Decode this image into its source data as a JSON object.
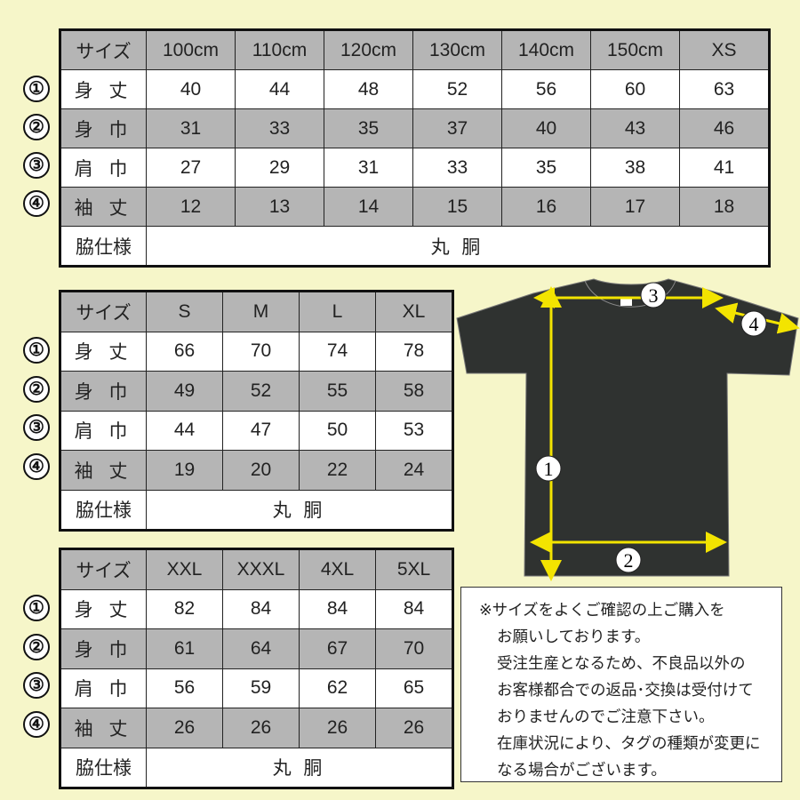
{
  "row_markers": [
    "①",
    "②",
    "③",
    "④"
  ],
  "tables": [
    {
      "header": [
        "サイズ",
        "100cm",
        "110cm",
        "120cm",
        "130cm",
        "140cm",
        "150cm",
        "XS"
      ],
      "rows": [
        {
          "label": "身 丈",
          "values": [
            "40",
            "44",
            "48",
            "52",
            "56",
            "60",
            "63"
          ]
        },
        {
          "label": "身 巾",
          "values": [
            "31",
            "33",
            "35",
            "37",
            "40",
            "43",
            "46"
          ]
        },
        {
          "label": "肩 巾",
          "values": [
            "27",
            "29",
            "31",
            "33",
            "35",
            "38",
            "41"
          ]
        },
        {
          "label": "袖 丈",
          "values": [
            "12",
            "13",
            "14",
            "15",
            "16",
            "17",
            "18"
          ]
        }
      ],
      "side_label": "脇仕様",
      "side_value": "丸 胴"
    },
    {
      "header": [
        "サイズ",
        "S",
        "M",
        "L",
        "XL"
      ],
      "rows": [
        {
          "label": "身 丈",
          "values": [
            "66",
            "70",
            "74",
            "78"
          ]
        },
        {
          "label": "身 巾",
          "values": [
            "49",
            "52",
            "55",
            "58"
          ]
        },
        {
          "label": "肩 巾",
          "values": [
            "44",
            "47",
            "50",
            "53"
          ]
        },
        {
          "label": "袖 丈",
          "values": [
            "19",
            "20",
            "22",
            "24"
          ]
        }
      ],
      "side_label": "脇仕様",
      "side_value": "丸 胴"
    },
    {
      "header": [
        "サイズ",
        "XXL",
        "XXXL",
        "4XL",
        "5XL"
      ],
      "rows": [
        {
          "label": "身 丈",
          "values": [
            "82",
            "84",
            "84",
            "84"
          ]
        },
        {
          "label": "身 巾",
          "values": [
            "61",
            "64",
            "67",
            "70"
          ]
        },
        {
          "label": "肩 巾",
          "values": [
            "56",
            "59",
            "62",
            "65"
          ]
        },
        {
          "label": "袖 丈",
          "values": [
            "26",
            "26",
            "26",
            "26"
          ]
        }
      ],
      "side_label": "脇仕様",
      "side_value": "丸 胴"
    }
  ],
  "diagram": {
    "markers": [
      "1",
      "2",
      "3",
      "4"
    ],
    "shirt_color": "#2f3230",
    "arrow_color": "#f3e400"
  },
  "note": {
    "lines": [
      "※サイズをよくご確認の上ご購入を",
      "お願いしております。",
      "受注生産となるため、不良品以外の",
      "お客様都合での返品･交換は受付けて",
      "おりませんのでご注意下さい。",
      "在庫状況により、タグの種類が変更に",
      "なる場合がございます。"
    ]
  },
  "colors": {
    "background": "#f6f6c9",
    "gray_row": "#b5b5b5"
  }
}
